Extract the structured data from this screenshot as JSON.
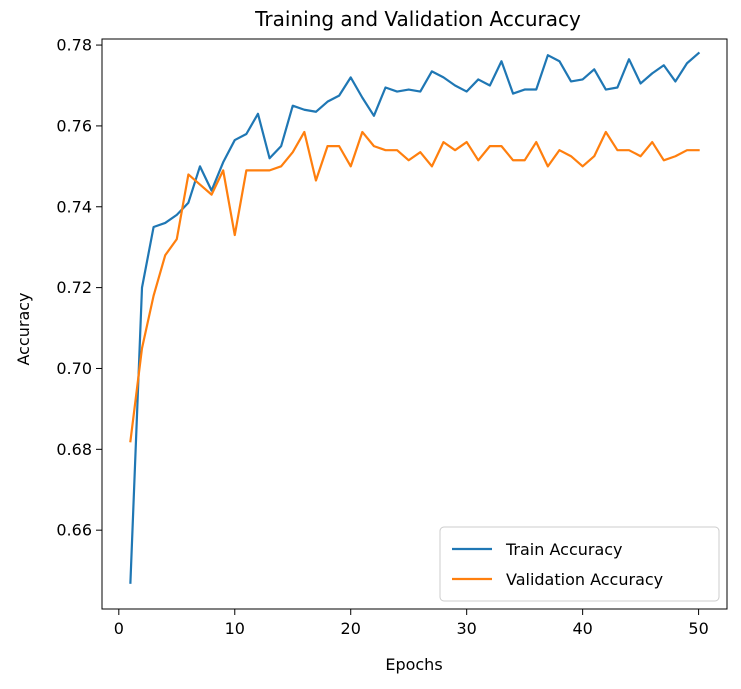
{
  "chart_data": {
    "type": "line",
    "title": "Training and Validation Accuracy",
    "xlabel": "Epochs",
    "ylabel": "Accuracy",
    "xlim": [
      -1.45,
      52.45
    ],
    "ylim": [
      0.6405,
      0.7815
    ],
    "x_ticks": [
      0,
      10,
      20,
      30,
      40,
      50
    ],
    "y_ticks": [
      0.66,
      0.68,
      0.7,
      0.72,
      0.74,
      0.76,
      0.78
    ],
    "y_tick_labels": [
      "0.66",
      "0.68",
      "0.70",
      "0.72",
      "0.74",
      "0.76",
      "0.78"
    ],
    "grid": false,
    "legend_position": "lower-right",
    "x": [
      1,
      2,
      3,
      4,
      5,
      6,
      7,
      8,
      9,
      10,
      11,
      12,
      13,
      14,
      15,
      16,
      17,
      18,
      19,
      20,
      21,
      22,
      23,
      24,
      25,
      26,
      27,
      28,
      29,
      30,
      31,
      32,
      33,
      34,
      35,
      36,
      37,
      38,
      39,
      40,
      41,
      42,
      43,
      44,
      45,
      46,
      47,
      48,
      49,
      50
    ],
    "series": [
      {
        "name": "Train Accuracy",
        "color": "#1f77b4",
        "values": [
          0.647,
          0.72,
          0.735,
          0.736,
          0.738,
          0.741,
          0.75,
          0.744,
          0.751,
          0.7565,
          0.758,
          0.763,
          0.752,
          0.755,
          0.765,
          0.764,
          0.7635,
          0.766,
          0.7675,
          0.772,
          0.767,
          0.7625,
          0.7695,
          0.7685,
          0.769,
          0.7685,
          0.7735,
          0.772,
          0.77,
          0.7685,
          0.7715,
          0.77,
          0.776,
          0.768,
          0.769,
          0.769,
          0.7775,
          0.776,
          0.771,
          0.7715,
          0.774,
          0.769,
          0.7695,
          0.7765,
          0.7705,
          0.773,
          0.775,
          0.771,
          0.7755,
          0.778
        ]
      },
      {
        "name": "Validation Accuracy",
        "color": "#ff7f0e",
        "values": [
          0.682,
          0.705,
          0.718,
          0.728,
          0.732,
          0.748,
          0.7455,
          0.743,
          0.749,
          0.733,
          0.749,
          0.749,
          0.749,
          0.75,
          0.7535,
          0.7585,
          0.7465,
          0.755,
          0.755,
          0.75,
          0.7585,
          0.755,
          0.754,
          0.754,
          0.7515,
          0.7535,
          0.75,
          0.756,
          0.754,
          0.756,
          0.7515,
          0.755,
          0.755,
          0.7515,
          0.7515,
          0.756,
          0.75,
          0.754,
          0.7525,
          0.75,
          0.7525,
          0.7585,
          0.754,
          0.754,
          0.7525,
          0.756,
          0.7515,
          0.7525,
          0.754,
          0.754
        ]
      }
    ]
  }
}
